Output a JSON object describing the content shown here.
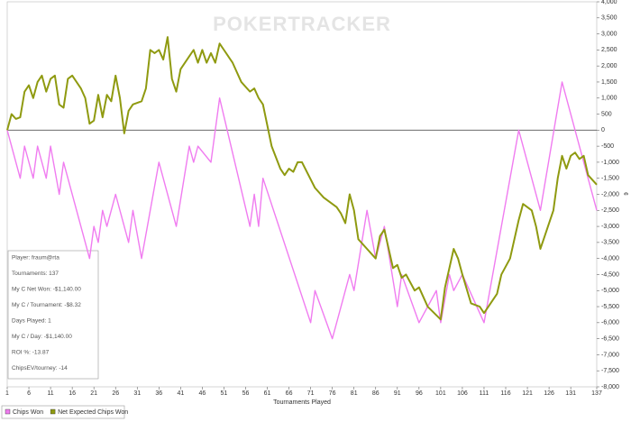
{
  "chart_data": {
    "type": "line",
    "watermark": "POKERTRACKER",
    "x_label": "Tournaments Played",
    "y_label": "¢",
    "xlim": [
      1,
      137
    ],
    "xticks": [
      1,
      6,
      11,
      16,
      21,
      26,
      31,
      36,
      41,
      46,
      51,
      56,
      61,
      66,
      71,
      76,
      81,
      86,
      91,
      96,
      101,
      106,
      111,
      116,
      121,
      126,
      131,
      137
    ],
    "ylim": [
      -8000,
      4000
    ],
    "yticks": [
      {
        "value": -8000,
        "label": "-8,000"
      },
      {
        "value": -7500,
        "label": "-7,500"
      },
      {
        "value": -7000,
        "label": "-7,000"
      },
      {
        "value": -6500,
        "label": "-6,500"
      },
      {
        "value": -6000,
        "label": "-6,000"
      },
      {
        "value": -5500,
        "label": "-5,500"
      },
      {
        "value": -5000,
        "label": "-5,000"
      },
      {
        "value": -4500,
        "label": "-4,500"
      },
      {
        "value": -4000,
        "label": "-4,000"
      },
      {
        "value": -3500,
        "label": "-3,500"
      },
      {
        "value": -3000,
        "label": "-3,000"
      },
      {
        "value": -2500,
        "label": "-2,500"
      },
      {
        "value": -2000,
        "label": "-2,000"
      },
      {
        "value": -1500,
        "label": "-1,500"
      },
      {
        "value": -1000,
        "label": "-1,000"
      },
      -500,
      0,
      500,
      {
        "value": 1000,
        "label": "1,000"
      },
      {
        "value": 1500,
        "label": "1,500"
      },
      {
        "value": 2000,
        "label": "2,000"
      },
      {
        "value": 2500,
        "label": "2,500"
      },
      {
        "value": 3000,
        "label": "3,000"
      },
      {
        "value": 3500,
        "label": "3,500"
      },
      {
        "value": 4000,
        "label": "4,000"
      }
    ],
    "series": [
      {
        "name": "Chips Won",
        "color": "#f07cf0",
        "x": [
          1,
          4,
          5,
          7,
          8,
          10,
          11,
          13,
          14,
          20,
          21,
          22,
          23,
          24,
          26,
          29,
          30,
          32,
          36,
          40,
          43,
          44,
          45,
          48,
          50,
          57,
          58,
          59,
          60,
          71,
          72,
          76,
          80,
          81,
          84,
          86,
          88,
          91,
          92,
          96,
          100,
          101,
          103,
          104,
          106,
          111,
          119,
          124,
          129,
          137
        ],
        "values": [
          0,
          -1500,
          -500,
          -1500,
          -500,
          -1500,
          -500,
          -2000,
          -1000,
          -4000,
          -3000,
          -3500,
          -2500,
          -3000,
          -2000,
          -3500,
          -2500,
          -4000,
          -1000,
          -3000,
          -500,
          -1000,
          -500,
          -1000,
          1000,
          -3000,
          -2000,
          -3000,
          -1500,
          -6000,
          -5000,
          -6500,
          -4500,
          -5000,
          -2500,
          -4000,
          -3000,
          -5500,
          -4500,
          -6000,
          -5000,
          -6000,
          -4500,
          -5000,
          -4500,
          -6000,
          0,
          -2500,
          1500,
          -2500
        ]
      },
      {
        "name": "Net Expected Chips Won",
        "color": "#8f9a10",
        "x": [
          1,
          2,
          3,
          4,
          5,
          6,
          7,
          8,
          9,
          10,
          11,
          12,
          13,
          14,
          15,
          16,
          17,
          18,
          19,
          20,
          21,
          22,
          23,
          24,
          25,
          26,
          27,
          28,
          29,
          30,
          31,
          32,
          33,
          34,
          35,
          36,
          37,
          38,
          39,
          40,
          41,
          42,
          43,
          44,
          45,
          46,
          47,
          48,
          49,
          50,
          51,
          53,
          55,
          57,
          58,
          59,
          60,
          62,
          64,
          65,
          66,
          67,
          68,
          69,
          72,
          74,
          77,
          78,
          79,
          80,
          81,
          82,
          84,
          86,
          87,
          88,
          89,
          90,
          91,
          92,
          93,
          95,
          96,
          98,
          101,
          102,
          104,
          105,
          106,
          108,
          110,
          111,
          112,
          114,
          115,
          117,
          119,
          120,
          122,
          123,
          124,
          125,
          127,
          128,
          129,
          130,
          131,
          132,
          133,
          134,
          135,
          137
        ],
        "values": [
          0,
          500,
          350,
          400,
          1200,
          1400,
          1000,
          1500,
          1700,
          1200,
          1600,
          1700,
          800,
          700,
          1600,
          1700,
          1500,
          1300,
          1000,
          200,
          300,
          1100,
          400,
          1100,
          900,
          1700,
          1000,
          -100,
          600,
          800,
          850,
          900,
          1300,
          2500,
          2400,
          2500,
          2200,
          2900,
          1600,
          1200,
          1900,
          2100,
          2300,
          2500,
          2100,
          2500,
          2100,
          2400,
          2100,
          2700,
          2500,
          2100,
          1500,
          1200,
          1300,
          1000,
          800,
          -500,
          -1200,
          -1400,
          -1200,
          -1300,
          -1000,
          -1000,
          -1800,
          -2100,
          -2400,
          -2600,
          -2900,
          -2000,
          -2500,
          -3400,
          -3700,
          -4000,
          -3300,
          -3100,
          -3700,
          -4300,
          -4200,
          -4600,
          -4500,
          -5000,
          -4900,
          -5500,
          -5900,
          -4900,
          -3700,
          -4000,
          -4500,
          -5400,
          -5500,
          -5700,
          -5500,
          -5100,
          -4500,
          -4000,
          -2800,
          -2300,
          -2500,
          -3000,
          -3700,
          -3300,
          -2500,
          -1500,
          -800,
          -1200,
          -800,
          -700,
          -900,
          -800,
          -1400,
          -1700
        ]
      }
    ],
    "info": [
      "Player: fraum@rta",
      "Tournaments: 137",
      "My C Net Won: -$1,140.00",
      "My C / Tournament: -$8.32",
      "Days Played: 1",
      "My C / Day: -$1,140.00",
      "ROI %: -13.87",
      "ChipsEV/tourney: -14"
    ]
  }
}
